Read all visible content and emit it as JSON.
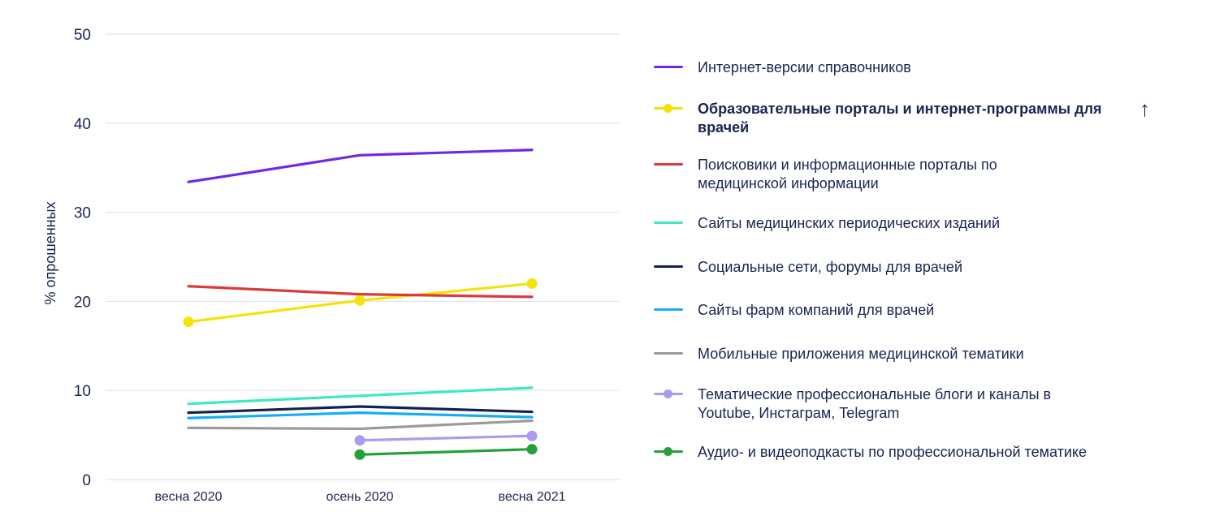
{
  "chart_data": {
    "type": "line",
    "ylabel": "% опрошенных",
    "xlabel": "",
    "ylim": [
      0,
      50
    ],
    "yticks": [
      0,
      10,
      20,
      30,
      40,
      50
    ],
    "categories": [
      "весна 2020",
      "осень 2020",
      "весна 2021"
    ],
    "grid": "horizontal",
    "legend_position": "right",
    "series": [
      {
        "name": "Интернет-версии справочников",
        "color": "#6d2ae2",
        "markers": false,
        "values": [
          33.4,
          36.4,
          37.0
        ]
      },
      {
        "name": "Образовательные порталы и интернет-программы для врачей",
        "color": "#f5e20a",
        "markers": true,
        "highlight": true,
        "trend": "↑",
        "values": [
          17.7,
          20.1,
          22.0
        ]
      },
      {
        "name": "Поисковики и информационные порталы по медицинской информации",
        "color": "#d93a3a",
        "markers": false,
        "values": [
          21.7,
          20.8,
          20.5
        ]
      },
      {
        "name": "Сайты медицинских периодических изданий",
        "color": "#3ee8c2",
        "markers": false,
        "values": [
          8.5,
          9.4,
          10.3
        ]
      },
      {
        "name": "Социальные сети, форумы для врачей",
        "color": "#14214f",
        "markers": false,
        "values": [
          7.5,
          8.2,
          7.6
        ]
      },
      {
        "name": "Сайты фарм компаний для врачей",
        "color": "#16aef0",
        "markers": false,
        "values": [
          6.9,
          7.5,
          7.0
        ]
      },
      {
        "name": "Мобильные приложения медицинской тематики",
        "color": "#9a9a9a",
        "markers": false,
        "values": [
          5.8,
          5.7,
          6.6
        ]
      },
      {
        "name": "Тематические профессиональные блоги и каналы в Youtube, Инстаграм, Telegram",
        "color": "#a99cf0",
        "markers": true,
        "values": [
          null,
          4.4,
          4.9
        ]
      },
      {
        "name": "Аудио- и видеоподкасты по профессиональной тематике",
        "color": "#23a03a",
        "markers": true,
        "values": [
          null,
          2.8,
          3.4
        ]
      }
    ]
  }
}
